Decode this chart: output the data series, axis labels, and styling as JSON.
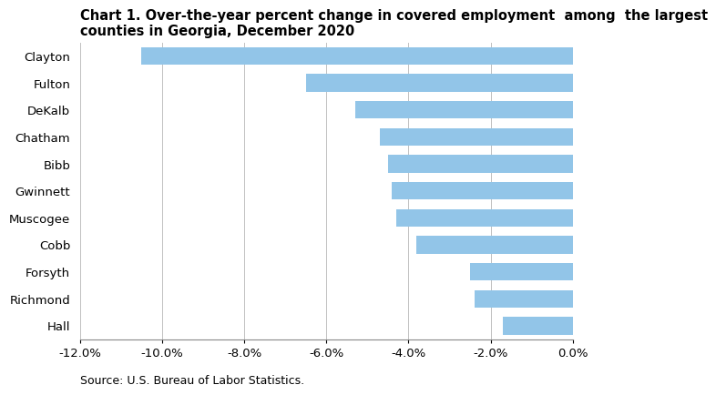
{
  "title_line1": "Chart 1. Over-the-year percent change in covered employment  among  the largest",
  "title_line2": "counties in Georgia, December 2020",
  "categories": [
    "Clayton",
    "Fulton",
    "DeKalb",
    "Chatham",
    "Bibb",
    "Gwinnett",
    "Muscogee",
    "Cobb",
    "Forsyth",
    "Richmond",
    "Hall"
  ],
  "values": [
    -10.5,
    -6.5,
    -5.3,
    -4.7,
    -4.5,
    -4.4,
    -4.3,
    -3.8,
    -2.5,
    -2.4,
    -1.7
  ],
  "bar_color": "#92C5E8",
  "xlim": [
    -12.0,
    0.0
  ],
  "xticks": [
    -12.0,
    -10.0,
    -8.0,
    -6.0,
    -4.0,
    -2.0,
    0.0
  ],
  "source": "Source: U.S. Bureau of Labor Statistics.",
  "background_color": "#ffffff",
  "grid_color": "#c0c0c0",
  "bar_height": 0.65,
  "title_fontsize": 10.5,
  "tick_fontsize": 9.5,
  "source_fontsize": 9
}
